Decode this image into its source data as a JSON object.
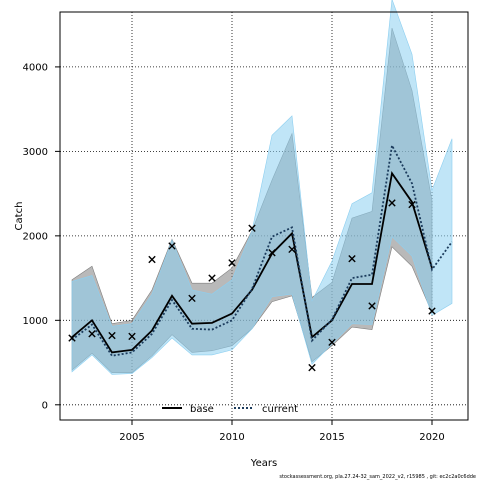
{
  "chart_data": {
    "type": "line",
    "xlabel": "Years",
    "ylabel": "Catch",
    "xlim": [
      2001.4,
      2021.8
    ],
    "ylim": [
      -180,
      4650
    ],
    "x_ticks": [
      2005,
      2010,
      2015,
      2020
    ],
    "y_ticks": [
      0,
      1000,
      2000,
      3000,
      4000
    ],
    "grid": true,
    "legend_position": "bottom-center",
    "series": [
      {
        "name": "base",
        "color": "#000000",
        "band_color": "#808080",
        "x": [
          2002,
          2003,
          2004,
          2005,
          2006,
          2007,
          2008,
          2009,
          2010,
          2011,
          2012,
          2013,
          2014,
          2015,
          2016,
          2017,
          2018,
          2019,
          2020
        ],
        "values": [
          800,
          1000,
          620,
          650,
          880,
          1290,
          960,
          970,
          1080,
          1360,
          1790,
          2030,
          800,
          1000,
          1430,
          1430,
          2740,
          2400,
          1620
        ],
        "lower": [
          410,
          610,
          380,
          380,
          580,
          830,
          620,
          640,
          700,
          900,
          1220,
          1290,
          510,
          700,
          920,
          890,
          1870,
          1640,
          1090
        ],
        "upper": [
          1480,
          1640,
          960,
          1000,
          1360,
          1960,
          1440,
          1440,
          1620,
          2060,
          2660,
          3210,
          1270,
          1450,
          2210,
          2290,
          4460,
          3720,
          2420
        ]
      },
      {
        "name": "current",
        "color": "#1b3b5c",
        "band_color": "#8dcff0",
        "x": [
          2002,
          2003,
          2004,
          2005,
          2006,
          2007,
          2008,
          2009,
          2010,
          2011,
          2012,
          2013,
          2014,
          2015,
          2016,
          2017,
          2018,
          2019,
          2020,
          2021
        ],
        "values": [
          770,
          950,
          580,
          620,
          840,
          1240,
          900,
          890,
          1000,
          1370,
          1990,
          2100,
          760,
          1010,
          1500,
          1540,
          3070,
          2620,
          1600,
          1930
        ],
        "lower": [
          390,
          590,
          360,
          370,
          560,
          790,
          590,
          590,
          650,
          900,
          1280,
          1310,
          480,
          720,
          960,
          950,
          1990,
          1760,
          1060,
          1200
        ],
        "upper": [
          1460,
          1530,
          930,
          960,
          1310,
          1950,
          1360,
          1310,
          1480,
          2060,
          3190,
          3420,
          1230,
          1700,
          2380,
          2510,
          4800,
          4150,
          2540,
          3150
        ]
      }
    ],
    "observations": {
      "name": "observed",
      "marker": "×",
      "x": [
        2002,
        2003,
        2004,
        2005,
        2006,
        2007,
        2008,
        2009,
        2010,
        2011,
        2012,
        2013,
        2014,
        2015,
        2016,
        2017,
        2018,
        2019,
        2020
      ],
      "values": [
        790,
        840,
        820,
        810,
        1720,
        1880,
        1260,
        1500,
        1680,
        2090,
        1800,
        1840,
        440,
        740,
        1730,
        1170,
        2390,
        2370,
        1110
      ]
    },
    "footer": "stockassessment.org, pla.27.24-32_sam_2022_v2, r15985 , git: ec2c2a0c6dde"
  }
}
